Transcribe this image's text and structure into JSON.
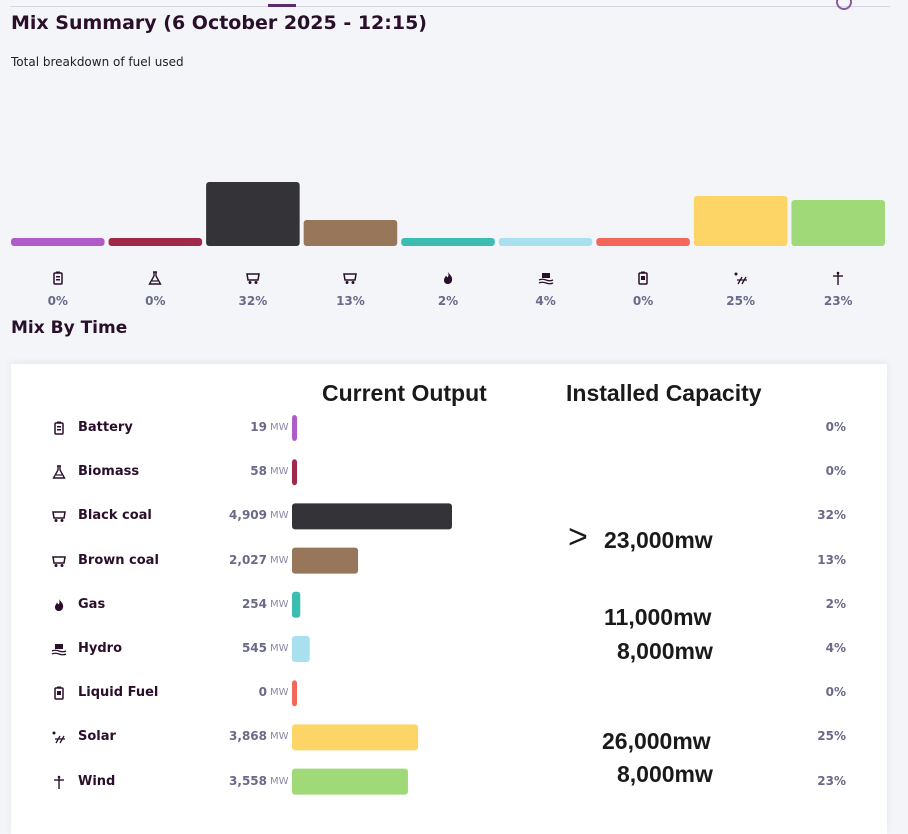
{
  "page": {
    "title": "Mix Summary (6 October 2025 - 12:15)",
    "subtitle": "Total breakdown of fuel used",
    "section_title": "Mix By Time"
  },
  "table": {
    "header_current": "Current Output",
    "header_capacity": "Installed Capacity",
    "unit": "MW",
    "rows": [
      {
        "icon": "battery-icon",
        "label": "Battery",
        "value": "19",
        "output_mw": 19,
        "pct": "0%",
        "color": "#b05cc8"
      },
      {
        "icon": "biomass-icon",
        "label": "Biomass",
        "value": "58",
        "output_mw": 58,
        "pct": "0%",
        "color": "#a02848"
      },
      {
        "icon": "coal-icon",
        "label": "Black coal",
        "value": "4,909",
        "output_mw": 4909,
        "pct": "32%",
        "color": "#333338"
      },
      {
        "icon": "coal-icon",
        "label": "Brown coal",
        "value": "2,027",
        "output_mw": 2027,
        "pct": "13%",
        "color": "#977659"
      },
      {
        "icon": "flame-icon",
        "label": "Gas",
        "value": "254",
        "output_mw": 254,
        "pct": "2%",
        "color": "#3bbdb1"
      },
      {
        "icon": "hydro-icon",
        "label": "Hydro",
        "value": "545",
        "output_mw": 545,
        "pct": "4%",
        "color": "#a9e0ee"
      },
      {
        "icon": "fuel-can-icon",
        "label": "Liquid Fuel",
        "value": "0",
        "output_mw": 0,
        "pct": "0%",
        "color": "#f3665a"
      },
      {
        "icon": "solar-icon",
        "label": "Solar",
        "value": "3,868",
        "output_mw": 3868,
        "pct": "25%",
        "color": "#fdd566"
      },
      {
        "icon": "wind-icon",
        "label": "Wind",
        "value": "3,558",
        "output_mw": 3558,
        "pct": "23%",
        "color": "#a0d978"
      }
    ]
  },
  "capacity_notes": {
    "gt_symbol": ">",
    "coal": "23,000mw",
    "gas": "11,000mw",
    "hydro": "8,000mw",
    "solar": "26,000mw",
    "wind": "8,000mw"
  },
  "chart_data": {
    "type": "bar",
    "title": "Total breakdown of fuel used",
    "categories": [
      "Battery",
      "Biomass",
      "Black coal",
      "Brown coal",
      "Gas",
      "Hydro",
      "Liquid Fuel",
      "Solar",
      "Wind"
    ],
    "values": [
      0,
      0,
      32,
      13,
      2,
      4,
      0,
      25,
      23
    ],
    "tick_labels": [
      "0%",
      "0%",
      "32%",
      "13%",
      "2%",
      "4%",
      "0%",
      "25%",
      "23%"
    ],
    "colors": [
      "#b05cc8",
      "#a02848",
      "#333338",
      "#977659",
      "#3bbdb1",
      "#a9e0ee",
      "#f3665a",
      "#fdd566",
      "#a0d978"
    ],
    "ylim": [
      0,
      100
    ],
    "xlabel": "",
    "ylabel": ""
  }
}
